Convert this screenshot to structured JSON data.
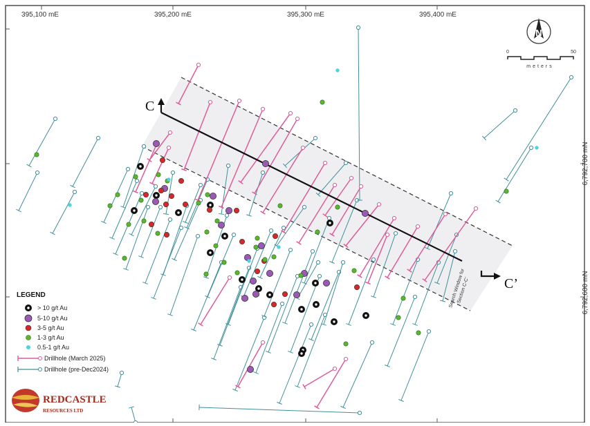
{
  "map": {
    "easting_labels": [
      "395,100 mE",
      "395,200 mE",
      "395,300 mE",
      "395,400 mE"
    ],
    "northing_labels": [
      "6,792,700 mN",
      "6,792,600 mN"
    ],
    "section_start": "C",
    "section_end": "C’",
    "search_window_line1": "Search Window for",
    "search_window_line2": "Section C-C’",
    "north_label": "N",
    "scale": {
      "min": "0",
      "max": "50",
      "unit": "meters"
    }
  },
  "legend": {
    "title": "LEGEND",
    "items": [
      {
        "label": "> 10 g/t Au",
        "color": "#111111",
        "name": "legend-item-gt10"
      },
      {
        "label": "5-10 g/t Au",
        "color": "#9b59b6",
        "name": "legend-item-5-10"
      },
      {
        "label": "3-5 g/t Au",
        "color": "#d62828",
        "name": "legend-item-3-5"
      },
      {
        "label": "1-3 g/t Au",
        "color": "#5cb531",
        "name": "legend-item-1-3"
      },
      {
        "label": "0.5-1 g/t Au",
        "color": "#4fd3e0",
        "name": "legend-item-0-5-1"
      }
    ],
    "drillholes": [
      {
        "label": "Drillhole (March 2025)",
        "color": "#dd5c9b"
      },
      {
        "label": "Drillhole (pre-Dec2024)",
        "color": "#3f8f9a"
      }
    ]
  },
  "logo": {
    "name": "REDCASTLE",
    "subtitle": "RESOURCES LTD"
  },
  "colors": {
    "grid": "#555555",
    "window_fill": "#efeff1",
    "pink_hole": "#dd5c9b",
    "teal_hole": "#3f8f9a"
  }
}
